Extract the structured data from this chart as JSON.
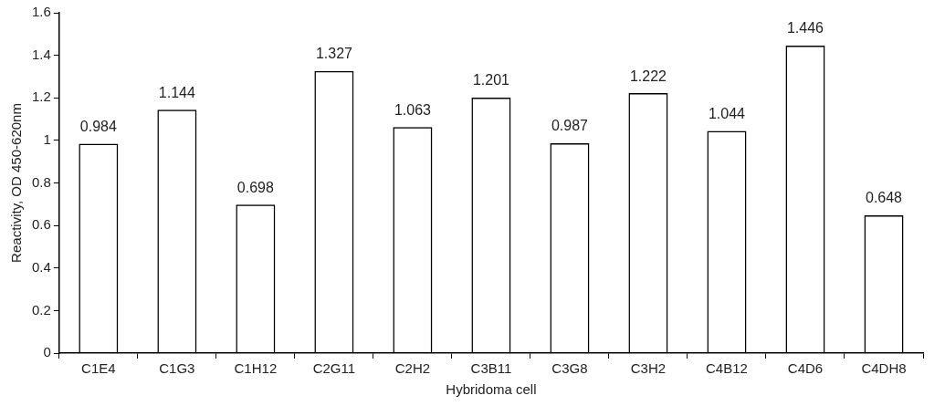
{
  "chart_data": {
    "type": "bar",
    "xlabel": "Hybridoma cell",
    "ylabel": "Reactivity, OD 450-620nm",
    "categories": [
      "C1E4",
      "C1G3",
      "C1H12",
      "C2G11",
      "C2H2",
      "C3B11",
      "C3G8",
      "C3H2",
      "C4B12",
      "C4D6",
      "C4DH8"
    ],
    "values": [
      0.984,
      1.144,
      0.698,
      1.327,
      1.063,
      1.201,
      0.987,
      1.222,
      1.044,
      1.446,
      0.648
    ],
    "color": "#000000",
    "ylim": [
      0,
      1.6
    ],
    "yticks": [
      0,
      0.2,
      0.4,
      0.6,
      0.8,
      1,
      1.2,
      1.4,
      1.6
    ],
    "data_labels": true,
    "grid": false,
    "legend": false
  }
}
